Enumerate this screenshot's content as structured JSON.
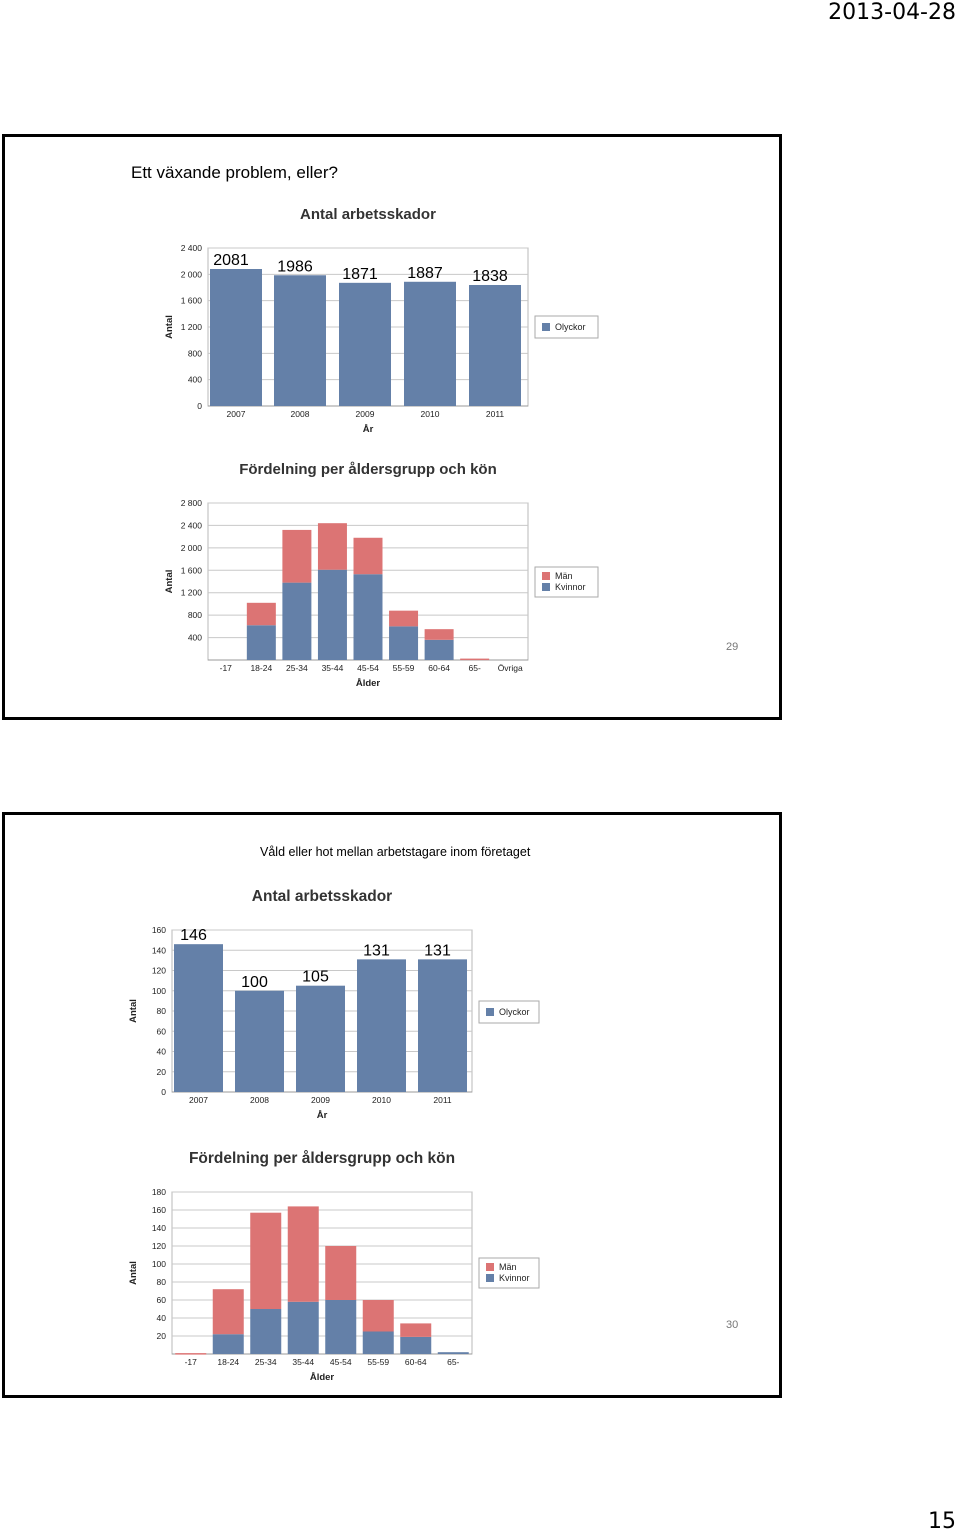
{
  "header": {
    "date": "2013-04-28"
  },
  "footer": {
    "page_number": "15"
  },
  "slides": [
    {
      "title": "Ett växande problem, eller?",
      "number": "29"
    },
    {
      "title": "Våld eller hot mellan arbetstagare inom företaget",
      "number": "30"
    }
  ],
  "colors": {
    "kvinnor": "#6480a8",
    "man": "#dc7474",
    "olyckor": "#6480a8"
  },
  "chart_data": [
    {
      "type": "bar",
      "title": "Antal arbetsskador",
      "xlabel": "År",
      "ylabel": "Antal",
      "categories": [
        "2007",
        "2008",
        "2009",
        "2010",
        "2011"
      ],
      "series": [
        {
          "name": "Olyckor",
          "values": [
            2081,
            1986,
            1871,
            1887,
            1838
          ]
        }
      ],
      "data_labels": [
        "2081",
        "1986",
        "1871",
        "1887",
        "1838"
      ],
      "ylim": [
        0,
        2400
      ],
      "yticks": [
        "0",
        "400",
        "800",
        "1 200",
        "1 600",
        "2 000",
        "2 400"
      ],
      "grid": true,
      "legend": "right"
    },
    {
      "type": "bar",
      "stacked": true,
      "title": "Fördelning per åldersgrupp och kön",
      "xlabel": "Ålder",
      "ylabel": "Antal",
      "categories": [
        "-17",
        "18-24",
        "25-34",
        "35-44",
        "45-54",
        "55-59",
        "60-64",
        "65-",
        "Övriga"
      ],
      "series": [
        {
          "name": "Kvinnor",
          "values": [
            0,
            620,
            1380,
            1610,
            1530,
            600,
            360,
            0,
            0
          ]
        },
        {
          "name": "Män",
          "values": [
            0,
            400,
            940,
            830,
            650,
            280,
            190,
            25,
            0
          ]
        }
      ],
      "ylim": [
        0,
        2800
      ],
      "yticks": [
        "400",
        "800",
        "1 200",
        "1 600",
        "2 000",
        "2 400",
        "2 800"
      ],
      "grid": true,
      "legend": "right"
    },
    {
      "type": "bar",
      "title": "Antal arbetsskador",
      "xlabel": "År",
      "ylabel": "Antal",
      "categories": [
        "2007",
        "2008",
        "2009",
        "2010",
        "2011"
      ],
      "series": [
        {
          "name": "Olyckor",
          "values": [
            146,
            100,
            105,
            131,
            131
          ]
        }
      ],
      "data_labels": [
        "146",
        "100",
        "105",
        "131",
        "131"
      ],
      "ylim": [
        0,
        160
      ],
      "yticks": [
        "0",
        "20",
        "40",
        "60",
        "80",
        "100",
        "120",
        "140",
        "160"
      ],
      "grid": true,
      "legend": "right"
    },
    {
      "type": "bar",
      "stacked": true,
      "title": "Fördelning per åldersgrupp och kön",
      "xlabel": "Ålder",
      "ylabel": "Antal",
      "categories": [
        "-17",
        "18-24",
        "25-34",
        "35-44",
        "45-54",
        "55-59",
        "60-64",
        "65-"
      ],
      "series": [
        {
          "name": "Kvinnor",
          "values": [
            0,
            22,
            50,
            58,
            60,
            25,
            19,
            2
          ]
        },
        {
          "name": "Män",
          "values": [
            1,
            50,
            107,
            106,
            60,
            35,
            15,
            0
          ]
        }
      ],
      "ylim": [
        0,
        180
      ],
      "yticks": [
        "20",
        "40",
        "60",
        "80",
        "100",
        "120",
        "140",
        "160",
        "180"
      ],
      "grid": true,
      "legend": "right"
    }
  ]
}
